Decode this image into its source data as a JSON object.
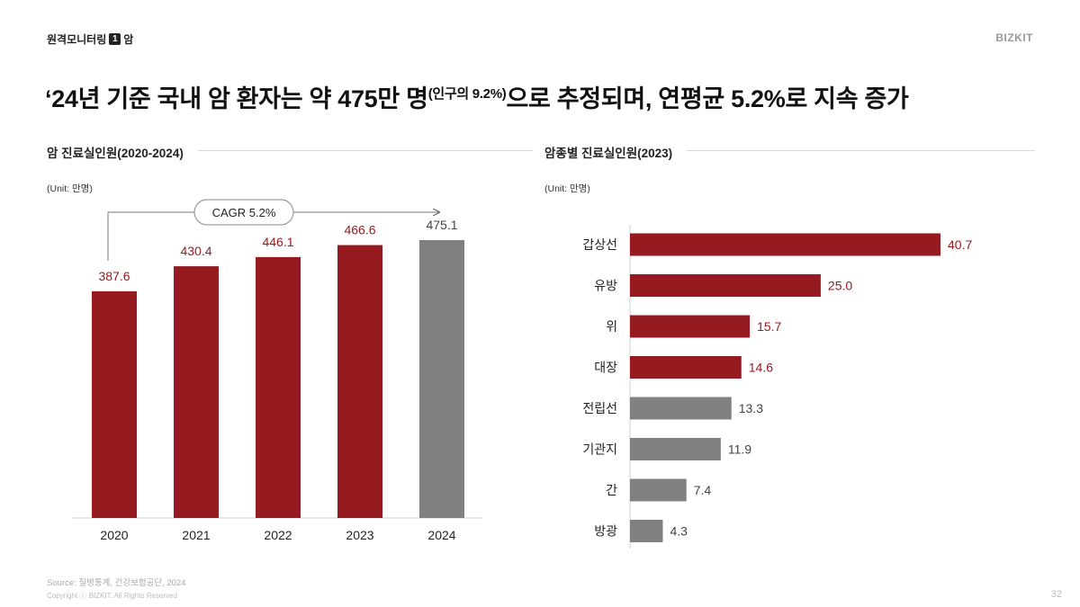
{
  "header": {
    "breadcrumb_text": "원격모니터링",
    "breadcrumb_num": "1",
    "breadcrumb_tail": "암",
    "brand": "BIZKIT"
  },
  "headline": {
    "main": "‘24년 기준 국내 암 환자는 약 475만 명",
    "superscript": "(인구의 9.2%)",
    "tail": "으로 추정되며, 연평균 5.2%로 지속 증가"
  },
  "colors": {
    "primary": "#961B20",
    "gray": "#808080",
    "axis": "#cccccc"
  },
  "chart_data": [
    {
      "type": "bar",
      "title": "암 진료실인원(2020-2024)",
      "unit_label": "(Unit: 만명)",
      "categories": [
        "2020",
        "2021",
        "2022",
        "2023",
        "2024"
      ],
      "values": [
        387.6,
        430.4,
        446.1,
        466.6,
        475.1
      ],
      "value_labels": [
        "387.6",
        "430.4",
        "446.1",
        "466.6",
        "475.1"
      ],
      "highlight_last": true,
      "annotation": "CAGR 5.2%",
      "ylim": [
        0,
        500
      ]
    },
    {
      "type": "bar",
      "orientation": "horizontal",
      "title": "암종별 진료실인원(2023)",
      "unit_label": "(Unit: 만명)",
      "categories": [
        "갑상선",
        "유방",
        "위",
        "대장",
        "전립선",
        "기관지",
        "간",
        "방광"
      ],
      "values": [
        40.7,
        25.0,
        15.7,
        14.6,
        13.3,
        11.9,
        7.4,
        4.3
      ],
      "value_labels": [
        "40.7",
        "25.0",
        "15.7",
        "14.6",
        "13.3",
        "11.9",
        "7.4",
        "4.3"
      ],
      "highlight_count": 4,
      "xlim": [
        0,
        45
      ]
    }
  ],
  "footer": {
    "source": "Source: 질병통계, 건강보험공단, 2024",
    "copyright": "Copyright ⓒ BIZKIT. All Rights Reserved",
    "page": "32"
  }
}
